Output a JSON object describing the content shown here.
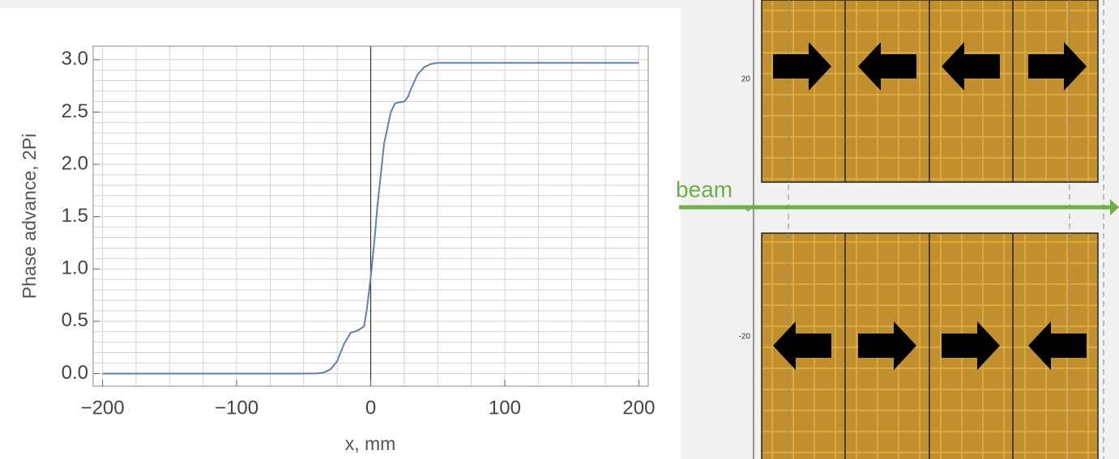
{
  "chart_data": {
    "type": "line",
    "xlabel": "x, mm",
    "ylabel": "Phase advance, 2Pi",
    "x": [
      -200,
      -100,
      -50,
      -40,
      -35,
      -30,
      -25,
      -20,
      -15,
      -10,
      -5,
      -3,
      0,
      3,
      5,
      10,
      15,
      18,
      20,
      25,
      28,
      30,
      35,
      40,
      45,
      50,
      60,
      100,
      200
    ],
    "series": [
      {
        "color": "#5e81b5",
        "values": [
          0,
          0,
          0,
          0.002,
          0.01,
          0.04,
          0.12,
          0.28,
          0.39,
          0.41,
          0.45,
          0.6,
          0.92,
          1.3,
          1.6,
          2.2,
          2.5,
          2.58,
          2.59,
          2.6,
          2.65,
          2.72,
          2.86,
          2.93,
          2.96,
          2.97,
          2.97,
          2.97,
          2.97
        ]
      }
    ],
    "xlim": [
      -207,
      207
    ],
    "ylim": [
      -0.12,
      3.13
    ],
    "xticks": [
      {
        "value": -200,
        "label": "−200"
      },
      {
        "value": -100,
        "label": "−100"
      },
      0,
      100,
      200
    ],
    "yticks": [
      {
        "value": 0,
        "label": "0.0"
      },
      {
        "value": 0.5,
        "label": "0.5"
      },
      {
        "value": 1,
        "label": "1.0"
      },
      {
        "value": 1.5,
        "label": "1.5"
      },
      {
        "value": 2,
        "label": "2.0"
      },
      {
        "value": 2.5,
        "label": "2.5"
      },
      {
        "value": 3,
        "label": "3.0"
      }
    ],
    "xgrid": [
      -200,
      -175,
      -150,
      -125,
      -100,
      -75,
      -50,
      -25,
      0,
      25,
      50,
      75,
      100,
      125,
      150,
      175,
      200
    ],
    "ygrid": [
      0,
      0.1,
      0.2,
      0.3,
      0.4,
      0.5,
      0.6,
      0.7,
      0.8,
      0.9,
      1,
      1.1,
      1.2,
      1.3,
      1.4,
      1.5,
      1.6,
      1.7,
      1.8,
      1.9,
      2,
      2.1,
      2.2,
      2.3,
      2.4,
      2.5,
      2.6,
      2.7,
      2.8,
      2.9,
      3
    ],
    "grid": true
  },
  "diagram": {
    "beam_label": "beam",
    "axis_labels": [
      "20",
      "0",
      "-20"
    ]
  }
}
